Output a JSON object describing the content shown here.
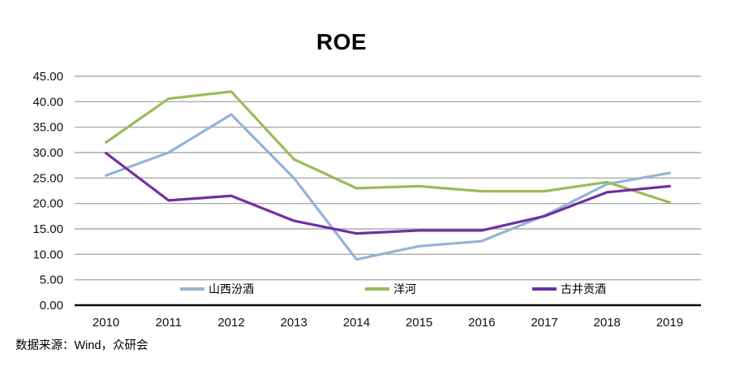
{
  "title": "ROE",
  "source_note": "数据来源：Wind，众研会",
  "colors": {
    "gridline": "#ABABAB",
    "axis": "#000000",
    "text": "#111111",
    "background": "#ffffff"
  },
  "chart_data": {
    "type": "line",
    "title": "ROE",
    "categories": [
      "2010",
      "2011",
      "2012",
      "2013",
      "2014",
      "2015",
      "2016",
      "2017",
      "2018",
      "2019"
    ],
    "series": [
      {
        "name": "山西汾酒",
        "color": "#95B3D7",
        "values": [
          25.5,
          30.0,
          37.5,
          25.0,
          9.0,
          11.6,
          12.6,
          17.6,
          23.8,
          26.0
        ]
      },
      {
        "name": "洋河",
        "color": "#9BBB59",
        "values": [
          32.0,
          40.6,
          42.0,
          28.7,
          23.0,
          23.4,
          22.4,
          22.4,
          24.2,
          20.2
        ]
      },
      {
        "name": "古井贡酒",
        "color": "#7030A0",
        "values": [
          29.9,
          20.6,
          21.5,
          16.6,
          14.1,
          14.7,
          14.7,
          17.5,
          22.2,
          23.4
        ]
      }
    ],
    "xlabel": "",
    "ylabel": "",
    "ylim": [
      0,
      45
    ],
    "y_tick_values": [
      0,
      5,
      10,
      15,
      20,
      25,
      30,
      35,
      40,
      45
    ],
    "y_tick_labels": [
      "0.00",
      "5.00",
      "10.00",
      "15.00",
      "20.00",
      "25.00",
      "30.00",
      "35.00",
      "40.00",
      "45.00"
    ],
    "grid": "horizontal",
    "legend_position": "bottom-inside"
  }
}
